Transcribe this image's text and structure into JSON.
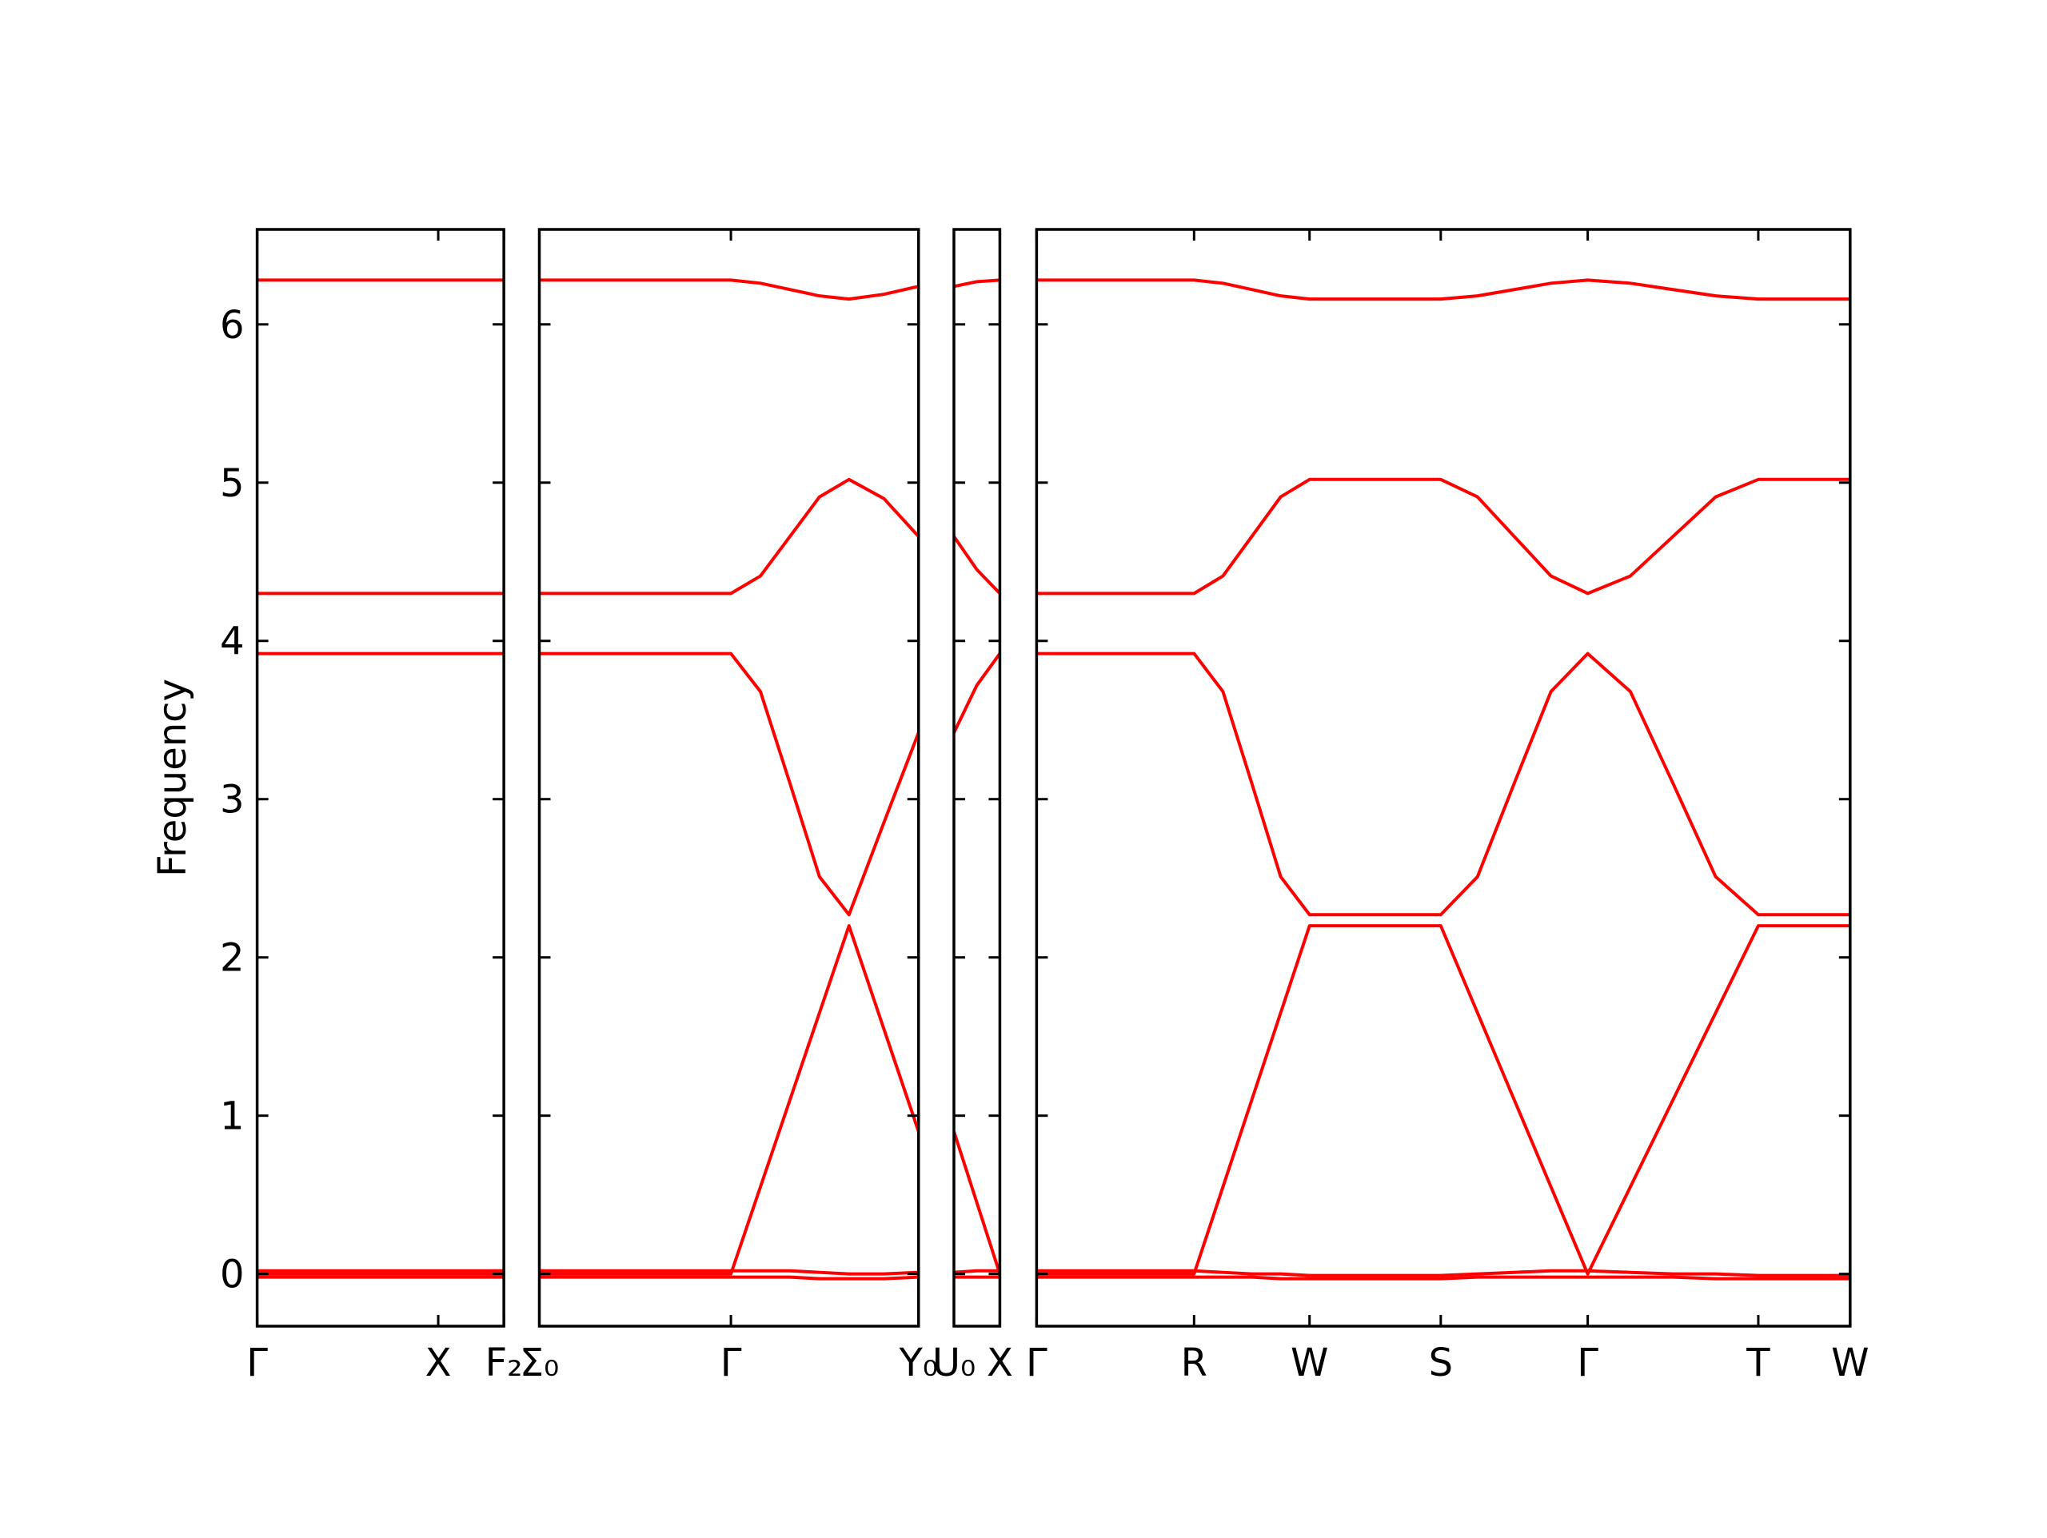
{
  "chart_data": [
    {
      "type": "line",
      "ylabel": "Frequency",
      "xlim": [
        0,
        1.88
      ],
      "xticks": [
        {
          "value": 0,
          "label": "Γ"
        },
        {
          "value": 1.38,
          "label": "X"
        },
        {
          "value": 1.88,
          "label": "F₂"
        }
      ],
      "ylim": [
        -0.33,
        6.6
      ],
      "yticks": [
        0,
        1,
        2,
        3,
        4,
        5,
        6
      ],
      "x": [
        0,
        1.38,
        1.88
      ],
      "series": [
        {
          "color": "#ff0000",
          "values": [
            0.02,
            0.02,
            0.02
          ]
        },
        {
          "color": "#ff0000",
          "values": [
            -0.02,
            -0.02,
            -0.02
          ]
        },
        {
          "color": "#ff0000",
          "values": [
            0,
            0,
            0
          ]
        },
        {
          "color": "#ff0000",
          "values": [
            3.92,
            3.92,
            3.92
          ]
        },
        {
          "color": "#ff0000",
          "values": [
            4.3,
            4.3,
            4.3
          ]
        },
        {
          "color": "#ff0000",
          "values": [
            6.28,
            6.28,
            6.28
          ]
        }
      ]
    },
    {
      "type": "line",
      "xlim": [
        0,
        2.89
      ],
      "xticks": [
        {
          "value": 0,
          "label": "Σ₀"
        },
        {
          "value": 1.46,
          "label": "Γ"
        },
        {
          "value": 2.89,
          "label": "Y₀"
        }
      ],
      "ylim": [
        -0.33,
        6.6
      ],
      "yticks": [
        0,
        1,
        2,
        3,
        4,
        5,
        6
      ],
      "x": [
        0,
        1.46,
        1.685,
        1.91,
        2.135,
        2.36,
        2.625,
        2.89
      ],
      "series": [
        {
          "color": "#ff0000",
          "values": [
            0.02,
            0.02,
            0.02,
            0.02,
            0.01,
            0.0,
            0.0,
            0.01
          ]
        },
        {
          "color": "#ff0000",
          "values": [
            -0.02,
            -0.02,
            -0.02,
            -0.02,
            -0.03,
            -0.03,
            -0.03,
            -0.02
          ]
        },
        {
          "color": "#ff0000",
          "values": [
            0,
            0,
            0.55,
            1.1,
            1.65,
            2.2,
            1.55,
            0.9
          ]
        },
        {
          "color": "#ff0000",
          "values": [
            3.92,
            3.92,
            3.68,
            3.1,
            2.51,
            2.27,
            2.85,
            3.42
          ]
        },
        {
          "color": "#ff0000",
          "values": [
            4.3,
            4.3,
            4.41,
            4.66,
            4.91,
            5.02,
            4.9,
            4.66
          ]
        },
        {
          "color": "#ff0000",
          "values": [
            6.28,
            6.28,
            6.26,
            6.22,
            6.18,
            6.16,
            6.19,
            6.24
          ]
        }
      ]
    },
    {
      "type": "line",
      "xlim": [
        0,
        0.35
      ],
      "xticks": [
        {
          "value": 0,
          "label": "U₀"
        },
        {
          "value": 0.35,
          "label": "X"
        }
      ],
      "ylim": [
        -0.33,
        6.6
      ],
      "yticks": [
        0,
        1,
        2,
        3,
        4,
        5,
        6
      ],
      "x": [
        0,
        0.175,
        0.35
      ],
      "series": [
        {
          "color": "#ff0000",
          "values": [
            0.01,
            0.02,
            0.02
          ]
        },
        {
          "color": "#ff0000",
          "values": [
            -0.02,
            -0.02,
            -0.02
          ]
        },
        {
          "color": "#ff0000",
          "values": [
            0.9,
            0.45,
            0
          ]
        },
        {
          "color": "#ff0000",
          "values": [
            3.42,
            3.72,
            3.92
          ]
        },
        {
          "color": "#ff0000",
          "values": [
            4.66,
            4.45,
            4.3
          ]
        },
        {
          "color": "#ff0000",
          "values": [
            6.24,
            6.27,
            6.28
          ]
        }
      ]
    },
    {
      "type": "line",
      "xlim": [
        0,
        6.2
      ],
      "xticks": [
        {
          "value": 0,
          "label": "Γ"
        },
        {
          "value": 1.2,
          "label": "R"
        },
        {
          "value": 2.08,
          "label": "W"
        },
        {
          "value": 3.08,
          "label": "S"
        },
        {
          "value": 4.2,
          "label": "Γ"
        },
        {
          "value": 5.5,
          "label": "T"
        },
        {
          "value": 6.2,
          "label": "W"
        }
      ],
      "ylim": [
        -0.33,
        6.6
      ],
      "yticks": [
        0,
        1,
        2,
        3,
        4,
        5,
        6
      ],
      "x": [
        0,
        1.2,
        1.42,
        1.64,
        1.86,
        2.08,
        3.08,
        3.36,
        3.64,
        3.92,
        4.2,
        4.525,
        4.85,
        5.175,
        5.5,
        6.2
      ],
      "series": [
        {
          "color": "#ff0000",
          "values": [
            0.02,
            0.02,
            0.01,
            0.0,
            0.0,
            -0.01,
            -0.01,
            0.0,
            0.01,
            0.02,
            0.02,
            0.01,
            0.0,
            0.0,
            -0.01,
            -0.01
          ]
        },
        {
          "color": "#ff0000",
          "values": [
            -0.02,
            -0.02,
            -0.02,
            -0.02,
            -0.03,
            -0.03,
            -0.03,
            -0.02,
            -0.02,
            -0.02,
            -0.02,
            -0.02,
            -0.02,
            -0.03,
            -0.03,
            -0.03
          ]
        },
        {
          "color": "#ff0000",
          "values": [
            0,
            0,
            0.55,
            1.1,
            1.65,
            2.2,
            2.2,
            1.65,
            1.1,
            0.55,
            0,
            0.55,
            1.1,
            1.65,
            2.2,
            2.2
          ]
        },
        {
          "color": "#ff0000",
          "values": [
            3.92,
            3.92,
            3.68,
            3.1,
            2.51,
            2.27,
            2.27,
            2.51,
            3.1,
            3.68,
            3.92,
            3.68,
            3.1,
            2.51,
            2.27,
            2.27
          ]
        },
        {
          "color": "#ff0000",
          "values": [
            4.3,
            4.3,
            4.41,
            4.66,
            4.91,
            5.02,
            5.02,
            4.91,
            4.66,
            4.41,
            4.3,
            4.41,
            4.66,
            4.91,
            5.02,
            5.02
          ]
        },
        {
          "color": "#ff0000",
          "values": [
            6.28,
            6.28,
            6.26,
            6.22,
            6.18,
            6.16,
            6.16,
            6.18,
            6.22,
            6.26,
            6.28,
            6.26,
            6.22,
            6.18,
            6.16,
            6.16
          ]
        }
      ]
    }
  ]
}
